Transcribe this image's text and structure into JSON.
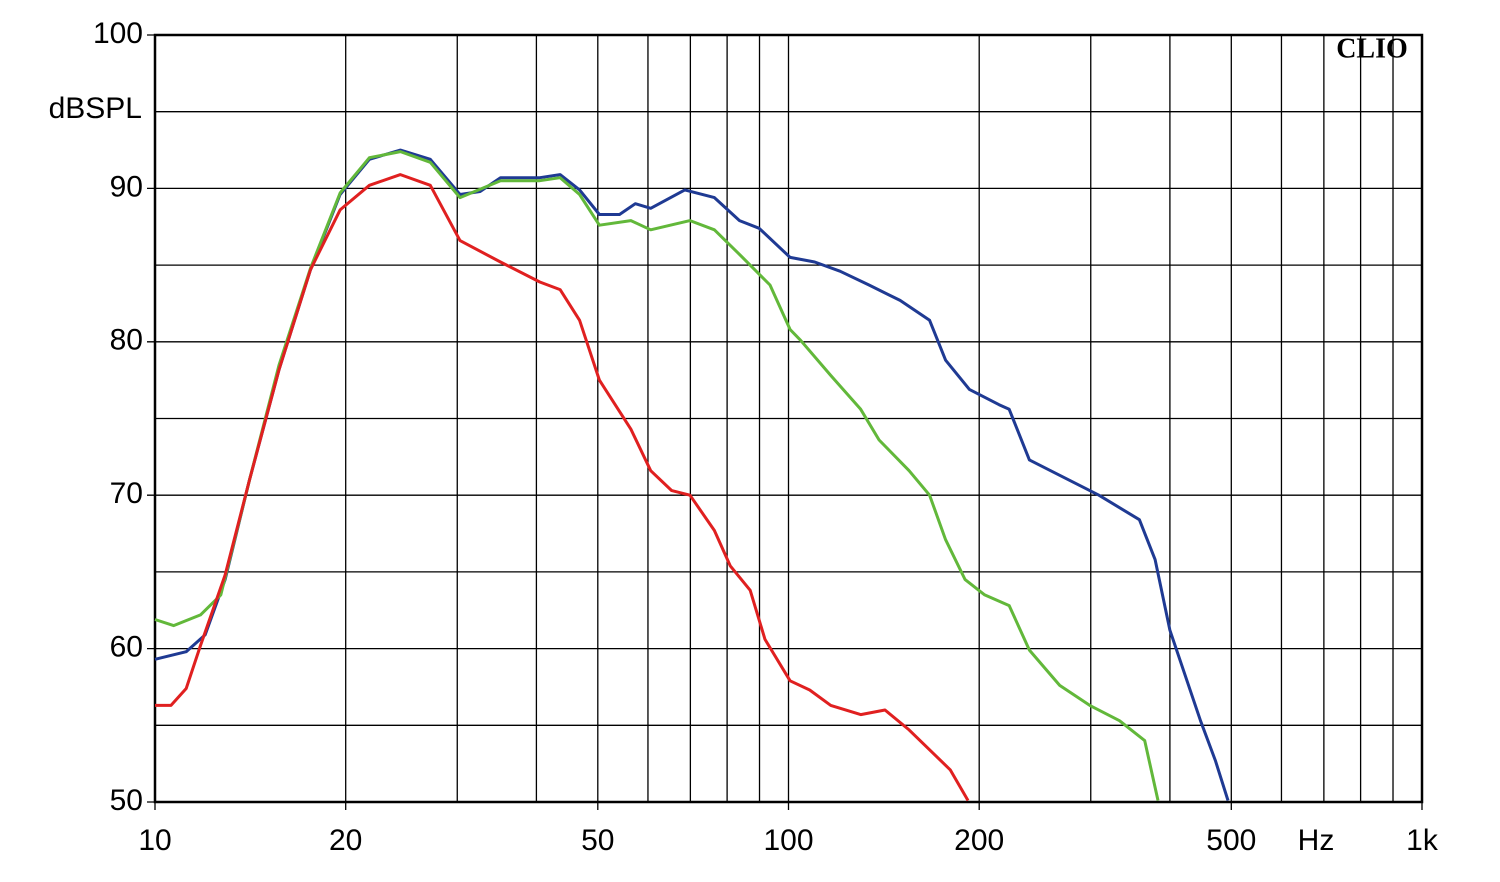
{
  "chart_data": {
    "type": "line",
    "y_axis_label": "dBSPL",
    "x_unit_label": "Hz",
    "watermark": "CLIO",
    "log_x": true,
    "grid": true,
    "xlim": [
      10,
      1000
    ],
    "ylim": [
      50,
      100
    ],
    "xticks": [
      10,
      20,
      50,
      100,
      200,
      500,
      {
        "value": 1000,
        "label": "1k"
      }
    ],
    "xgrid": [
      30,
      40,
      60,
      70,
      80,
      90,
      300,
      400,
      600,
      700,
      800,
      900
    ],
    "yticks": [
      50,
      60,
      70,
      80,
      90,
      100
    ],
    "ygrid": [
      55,
      65,
      75,
      85,
      95
    ],
    "series": [
      {
        "color": "#1f3a93",
        "x": [
          10,
          11.2,
          12,
          12.9,
          14.1,
          15.7,
          17.6,
          19.6,
          21.8,
          24.4,
          27.2,
          30.3,
          32.6,
          35.1,
          40.5,
          43.6,
          46.8,
          50.3,
          54.1,
          57.3,
          60.6,
          68.6,
          76.4,
          83.7,
          89.9,
          100.6,
          110,
          120.6,
          134,
          150,
          167,
          177,
          193,
          215,
          223,
          240,
          268,
          309,
          358,
          379,
          400,
          447,
          472,
          494
        ],
        "values": [
          59.3,
          59.8,
          60.9,
          64.5,
          71.0,
          78.2,
          84.7,
          89.6,
          91.9,
          92.5,
          91.9,
          89.6,
          89.8,
          90.7,
          90.7,
          90.9,
          89.9,
          88.3,
          88.3,
          89.0,
          88.7,
          89.9,
          89.4,
          87.9,
          87.4,
          85.5,
          85.2,
          84.6,
          83.7,
          82.7,
          81.4,
          78.8,
          76.9,
          75.9,
          75.6,
          72.3,
          71.3,
          70.0,
          68.4,
          65.8,
          61.2,
          55.3,
          52.7,
          50.1
        ]
      },
      {
        "color": "#62b83a",
        "x": [
          10,
          10.7,
          11.8,
          12.7,
          14.1,
          15.7,
          17.6,
          19.6,
          21.8,
          24.4,
          27.2,
          30.3,
          35.1,
          40.5,
          43.6,
          46.8,
          50.3,
          56.4,
          60.6,
          69.9,
          76.4,
          83.7,
          93.5,
          100.6,
          104.5,
          116.6,
          130,
          139,
          155,
          167,
          177,
          190,
          204,
          223,
          240,
          268,
          299,
          333,
          365,
          383
        ],
        "values": [
          61.9,
          61.5,
          62.2,
          63.5,
          71.0,
          78.5,
          84.8,
          89.7,
          92.0,
          92.4,
          91.7,
          89.4,
          90.5,
          90.5,
          90.7,
          89.6,
          87.6,
          87.9,
          87.3,
          87.9,
          87.3,
          85.7,
          83.7,
          80.8,
          80.1,
          77.8,
          75.6,
          73.6,
          71.6,
          70.0,
          67.1,
          64.5,
          63.5,
          62.8,
          59.9,
          57.6,
          56.3,
          55.3,
          54.0,
          50.1
        ]
      },
      {
        "color": "#e02020",
        "x": [
          10,
          10.6,
          11.2,
          11.8,
          12.9,
          14.1,
          15.7,
          17.6,
          19.6,
          21.8,
          24.4,
          27.2,
          30.3,
          35.1,
          40.5,
          43.6,
          46.8,
          50.3,
          56.4,
          60.6,
          65.4,
          69.9,
          76.4,
          80.9,
          87.0,
          91.8,
          100.6,
          108,
          116.6,
          130,
          142,
          155,
          167,
          180,
          192
        ],
        "values": [
          56.3,
          56.3,
          57.4,
          60.2,
          64.8,
          71.0,
          78.2,
          84.7,
          88.6,
          90.2,
          90.9,
          90.2,
          86.6,
          85.2,
          83.9,
          83.4,
          81.4,
          77.5,
          74.3,
          71.6,
          70.3,
          70.0,
          67.7,
          65.4,
          63.8,
          60.6,
          57.9,
          57.3,
          56.3,
          55.7,
          56.0,
          54.7,
          53.4,
          52.1,
          50.1
        ]
      }
    ]
  }
}
